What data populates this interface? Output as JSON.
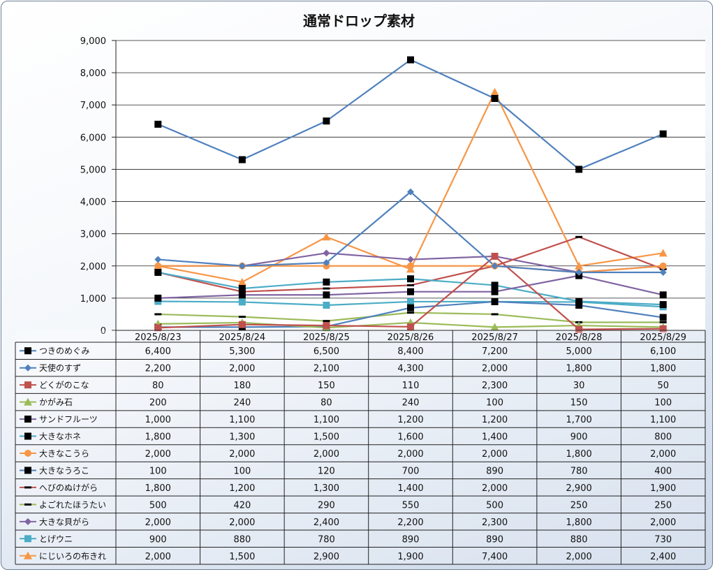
{
  "chart_data": {
    "type": "line",
    "title": "通常ドロップ素材",
    "categories": [
      "2025/8/23",
      "2025/8/24",
      "2025/8/25",
      "2025/8/26",
      "2025/8/27",
      "2025/8/28",
      "2025/8/29"
    ],
    "ylim": [
      0,
      9000
    ],
    "yticks": [
      "0",
      "1,000",
      "2,000",
      "3,000",
      "4,000",
      "5,000",
      "6,000",
      "7,000",
      "8,000",
      "9,000"
    ],
    "grid": true,
    "legend": "data-table-left",
    "series": [
      {
        "name": "つきのめぐみ",
        "color": "#4f81bd",
        "marker": "square-black",
        "values": [
          6400,
          5300,
          6500,
          8400,
          7200,
          5000,
          6100
        ],
        "labels": [
          "6,400",
          "5,300",
          "6,500",
          "8,400",
          "7,200",
          "5,000",
          "6,100"
        ]
      },
      {
        "name": "天使のすず",
        "color": "#4f81bd",
        "marker": "diamond",
        "values": [
          2200,
          2000,
          2100,
          4300,
          2000,
          1800,
          1800
        ],
        "labels": [
          "2,200",
          "2,000",
          "2,100",
          "4,300",
          "2,000",
          "1,800",
          "1,800"
        ]
      },
      {
        "name": "どくがのこな",
        "color": "#c0504d",
        "marker": "square",
        "values": [
          80,
          180,
          150,
          110,
          2300,
          30,
          50
        ],
        "labels": [
          "80",
          "180",
          "150",
          "110",
          "2,300",
          "30",
          "50"
        ]
      },
      {
        "name": "かがみ石",
        "color": "#9bbb59",
        "marker": "triangle",
        "values": [
          200,
          240,
          80,
          240,
          100,
          150,
          100
        ],
        "labels": [
          "200",
          "240",
          "80",
          "240",
          "100",
          "150",
          "100"
        ]
      },
      {
        "name": "サンドフルーツ",
        "color": "#8064a2",
        "marker": "square-black",
        "values": [
          1000,
          1100,
          1100,
          1200,
          1200,
          1700,
          1100
        ],
        "labels": [
          "1,000",
          "1,100",
          "1,100",
          "1,200",
          "1,200",
          "1,700",
          "1,100"
        ]
      },
      {
        "name": "大きなホネ",
        "color": "#4bacc6",
        "marker": "square-black",
        "values": [
          1800,
          1300,
          1500,
          1600,
          1400,
          900,
          800
        ],
        "labels": [
          "1,800",
          "1,300",
          "1,500",
          "1,600",
          "1,400",
          "900",
          "800"
        ]
      },
      {
        "name": "大きなこうら",
        "color": "#f79646",
        "marker": "circle",
        "values": [
          2000,
          2000,
          2000,
          2000,
          2000,
          1800,
          2000
        ],
        "labels": [
          "2,000",
          "2,000",
          "2,000",
          "2,000",
          "2,000",
          "1,800",
          "2,000"
        ]
      },
      {
        "name": "大きなうろこ",
        "color": "#4f81bd",
        "marker": "square-black",
        "values": [
          100,
          100,
          120,
          700,
          890,
          780,
          400
        ],
        "labels": [
          "100",
          "100",
          "120",
          "700",
          "890",
          "780",
          "400"
        ]
      },
      {
        "name": "へびのぬけがら",
        "color": "#c0504d",
        "marker": "dash",
        "values": [
          1800,
          1200,
          1300,
          1400,
          2000,
          2900,
          1900
        ],
        "labels": [
          "1,800",
          "1,200",
          "1,300",
          "1,400",
          "2,000",
          "2,900",
          "1,900"
        ]
      },
      {
        "name": "よごれたほうたい",
        "color": "#9bbb59",
        "marker": "dash",
        "values": [
          500,
          420,
          290,
          550,
          500,
          250,
          250
        ],
        "labels": [
          "500",
          "420",
          "290",
          "550",
          "500",
          "250",
          "250"
        ]
      },
      {
        "name": "大きな貝がら",
        "color": "#8064a2",
        "marker": "diamond",
        "values": [
          2000,
          2000,
          2400,
          2200,
          2300,
          1800,
          2000
        ],
        "labels": [
          "2,000",
          "2,000",
          "2,400",
          "2,200",
          "2,300",
          "1,800",
          "2,000"
        ]
      },
      {
        "name": "とげウニ",
        "color": "#4bacc6",
        "marker": "square",
        "values": [
          900,
          880,
          780,
          890,
          890,
          880,
          730
        ],
        "labels": [
          "900",
          "880",
          "780",
          "890",
          "890",
          "880",
          "730"
        ]
      },
      {
        "name": "にじいろの布きれ",
        "color": "#f79646",
        "marker": "triangle",
        "values": [
          2000,
          1500,
          2900,
          1900,
          7400,
          2000,
          2400
        ],
        "labels": [
          "2,000",
          "1,500",
          "2,900",
          "1,900",
          "7,400",
          "2,000",
          "2,400"
        ]
      }
    ]
  }
}
